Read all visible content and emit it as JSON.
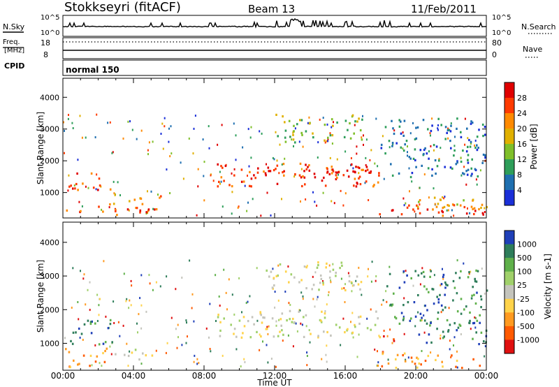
{
  "header": {
    "station": "Stokkseyri (fitACF)",
    "beam": "Beam 13",
    "date": "11/Feb/2011"
  },
  "status_panels": {
    "nsky_label": "N.Sky",
    "nsky_ticks": [
      "10^5",
      "10^0"
    ],
    "nsearch_label": "N.Search",
    "nsearch_ticks": [
      "10^5",
      "10^0"
    ],
    "freq_label_line1": "Freq.",
    "freq_label_line2": "[MHz]",
    "freq_ticks": [
      "18",
      "8"
    ],
    "nave_label": "Nave",
    "nave_ticks": [
      "80",
      "0"
    ],
    "cpid_label": "CPID",
    "cpid_value": "normal 150"
  },
  "chart_data": [
    {
      "type": "heatmap",
      "name": "power",
      "xlabel": "Time UT",
      "ylabel": "Slant Range [km]",
      "x_ticks": [
        "00:00",
        "04:00",
        "08:00",
        "12:00",
        "16:00",
        "20:00",
        "00:00"
      ],
      "y_ticks": [
        "1000",
        "2000",
        "3000",
        "4000"
      ],
      "xlim_hours": [
        0,
        24
      ],
      "ylim_km": [
        200,
        4600
      ],
      "colorbar_label": "Power [dB]",
      "colorbar_ticks": [
        "28",
        "24",
        "20",
        "16",
        "12",
        "8",
        "4"
      ],
      "colorbar_colors": [
        "#e00000",
        "#ff3a00",
        "#ff8a00",
        "#e0b000",
        "#7fbf2a",
        "#2e9e5a",
        "#1f6fb0",
        "#1a2fd8"
      ],
      "regions": [
        {
          "t0": 0.3,
          "t1": 2.8,
          "r0": 1100,
          "r1": 1650,
          "level": 6
        },
        {
          "t0": 0.1,
          "t1": 5.6,
          "r0": 300,
          "r1": 600,
          "level": 6
        },
        {
          "t0": 2.6,
          "t1": 5.6,
          "r0": 650,
          "r1": 950,
          "level": 5
        },
        {
          "t0": 8.6,
          "t1": 18.0,
          "r0": 1200,
          "r1": 1950,
          "level": 6
        },
        {
          "t0": 10.5,
          "t1": 18.0,
          "r0": 1500,
          "r1": 1850,
          "level": 7
        },
        {
          "t0": 17.8,
          "t1": 24.0,
          "r0": 300,
          "r1": 700,
          "level": 6
        },
        {
          "t0": 18.6,
          "t1": 20.0,
          "r0": 350,
          "r1": 650,
          "level": 7
        },
        {
          "t0": 20.0,
          "t1": 24.0,
          "r0": 500,
          "r1": 900,
          "level": 4
        },
        {
          "t0": 12.0,
          "t1": 17.0,
          "r0": 2600,
          "r1": 3500,
          "level": 3
        },
        {
          "t0": 18.0,
          "t1": 24.0,
          "r0": 1500,
          "r1": 3400,
          "level": 1
        }
      ]
    },
    {
      "type": "heatmap",
      "name": "velocity",
      "xlabel": "Time UT",
      "ylabel": "Slant Range [km]",
      "x_ticks": [
        "00:00",
        "04:00",
        "08:00",
        "12:00",
        "16:00",
        "20:00",
        "00:00"
      ],
      "y_ticks": [
        "1000",
        "2000",
        "3000",
        "4000"
      ],
      "xlim_hours": [
        0,
        24
      ],
      "ylim_km": [
        200,
        4600
      ],
      "colorbar_label": "Velocity [m s-1]",
      "colorbar_ticks": [
        "1000",
        "500",
        "100",
        "25",
        "-25",
        "-100",
        "-500",
        "-1000"
      ],
      "colorbar_colors": [
        "#1f3fb8",
        "#2e7d5a",
        "#5fb04a",
        "#a0d06a",
        "#c4c4bc",
        "#ffd34a",
        "#ff9a20",
        "#ff5a00",
        "#e01010"
      ],
      "regions": [
        {
          "t0": 0.3,
          "t1": 2.8,
          "r0": 1000,
          "r1": 1750,
          "level": 1
        },
        {
          "t0": 0.1,
          "t1": 2.6,
          "r0": 300,
          "r1": 900,
          "level": 6
        },
        {
          "t0": 2.6,
          "t1": 5.6,
          "r0": 550,
          "r1": 850,
          "level": 4
        },
        {
          "t0": 8.6,
          "t1": 18.0,
          "r0": 1200,
          "r1": 2000,
          "level": 4
        },
        {
          "t0": 11.5,
          "t1": 17.0,
          "r0": 2600,
          "r1": 3500,
          "level": 4
        },
        {
          "t0": 17.6,
          "t1": 24.0,
          "r0": 300,
          "r1": 750,
          "level": 6
        },
        {
          "t0": 18.0,
          "t1": 18.8,
          "r0": 700,
          "r1": 1300,
          "level": 7
        },
        {
          "t0": 20.0,
          "t1": 24.0,
          "r0": 1000,
          "r1": 1700,
          "level": 1
        },
        {
          "t0": 18.2,
          "t1": 24.0,
          "r0": 1600,
          "r1": 3200,
          "level": 1
        }
      ]
    }
  ]
}
